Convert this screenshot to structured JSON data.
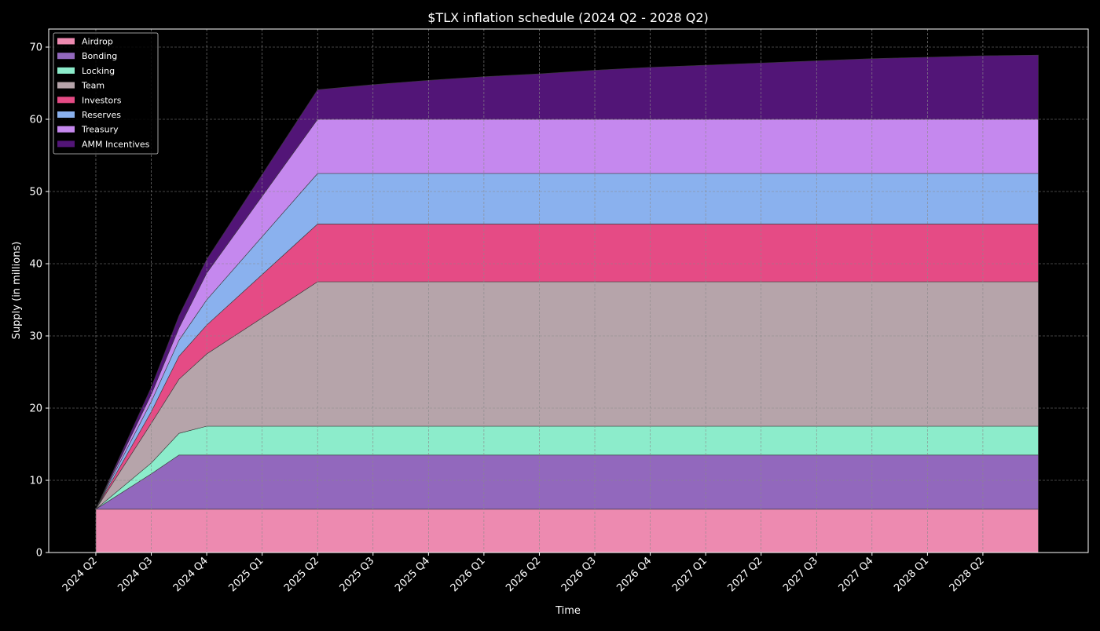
{
  "chart_data": {
    "type": "area",
    "stacked": true,
    "title": "$TLX inflation schedule (2024 Q2 - 2028 Q2)",
    "xlabel": "Time",
    "ylabel": "Supply (in millions)",
    "ylim": [
      0,
      72.5
    ],
    "yticks": [
      0,
      10,
      20,
      30,
      40,
      50,
      60,
      70
    ],
    "xlim": [
      -0.85,
      17.9
    ],
    "xticks": [
      "2024 Q2",
      "2024 Q3",
      "2024 Q4",
      "2025 Q1",
      "2025 Q2",
      "2025 Q3",
      "2025 Q4",
      "2026 Q1",
      "2026 Q2",
      "2026 Q3",
      "2026 Q4",
      "2027 Q1",
      "2027 Q2",
      "2027 Q3",
      "2027 Q4",
      "2028 Q1",
      "2028 Q2"
    ],
    "x": [
      0,
      1,
      1.5,
      2,
      4,
      5,
      6,
      7,
      8,
      9,
      10,
      11,
      12,
      13,
      14,
      15,
      16,
      17
    ],
    "grid": true,
    "legend_position": "top-left",
    "series": [
      {
        "name": "Airdrop",
        "color": "#ed8ab0",
        "values": [
          6,
          6,
          6,
          6,
          6,
          6,
          6,
          6,
          6,
          6,
          6,
          6,
          6,
          6,
          6,
          6,
          6,
          6
        ]
      },
      {
        "name": "Bonding",
        "color": "#9268bd",
        "values": [
          0,
          4.9,
          7.5,
          7.5,
          7.5,
          7.5,
          7.5,
          7.5,
          7.5,
          7.5,
          7.5,
          7.5,
          7.5,
          7.5,
          7.5,
          7.5,
          7.5,
          7.5
        ]
      },
      {
        "name": "Locking",
        "color": "#8ceccb",
        "values": [
          0,
          1.5,
          3,
          4,
          4,
          4,
          4,
          4,
          4,
          4,
          4,
          4,
          4,
          4,
          4,
          4,
          4,
          4
        ]
      },
      {
        "name": "Team",
        "color": "#b6a4aa",
        "values": [
          0,
          5.5,
          7.5,
          10,
          20,
          20,
          20,
          20,
          20,
          20,
          20,
          20,
          20,
          20,
          20,
          20,
          20,
          20
        ]
      },
      {
        "name": "Investors",
        "color": "#e54b85",
        "values": [
          0,
          1.6,
          3.2,
          4,
          8,
          8,
          8,
          8,
          8,
          8,
          8,
          8,
          8,
          8,
          8,
          8,
          8,
          8
        ]
      },
      {
        "name": "Reserves",
        "color": "#8ab1ee",
        "values": [
          0,
          1.4,
          2.2,
          3.5,
          7,
          7,
          7,
          7,
          7,
          7,
          7,
          7,
          7,
          7,
          7,
          7,
          7,
          7
        ]
      },
      {
        "name": "Treasury",
        "color": "#c588ee",
        "values": [
          0,
          1,
          1.7,
          3.7,
          7.5,
          7.5,
          7.5,
          7.5,
          7.5,
          7.5,
          7.5,
          7.5,
          7.5,
          7.5,
          7.5,
          7.5,
          7.5,
          7.5
        ]
      },
      {
        "name": "AMM Incentives",
        "color": "#521577",
        "values": [
          0,
          1,
          1.7,
          1.9,
          4.1,
          4.8,
          5.4,
          5.9,
          6.3,
          6.8,
          7.2,
          7.5,
          7.8,
          8.1,
          8.4,
          8.6,
          8.8,
          8.9
        ]
      }
    ]
  }
}
